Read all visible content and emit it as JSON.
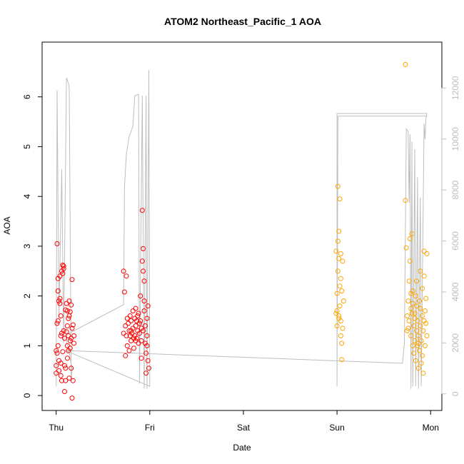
{
  "chart_data": {
    "type": "scatter",
    "title": "ATOM2 Northeast_Pacific_1 AOA",
    "xlabel": "Date",
    "ylabel": "AOA",
    "x_tick_labels": [
      "Thu",
      "Fri",
      "Sat",
      "Sun",
      "Mon"
    ],
    "x_tick_days": [
      0,
      1,
      2,
      3,
      4
    ],
    "xlim_days": [
      -0.15,
      4.12
    ],
    "ylim": [
      -0.3,
      7.1
    ],
    "y_ticks": [
      0,
      1,
      2,
      3,
      4,
      5,
      6
    ],
    "y2_ticks": [
      0,
      2000,
      4000,
      6000,
      8000,
      10000,
      12000
    ],
    "y2lim": [
      -650,
      13800
    ],
    "grid": false,
    "legend": "none",
    "colors": {
      "leg1": "#ff0000",
      "leg2": "#ff0000",
      "leg3": "#ffa500",
      "leg4": "#ffa500",
      "altitude": "#bebebe",
      "axis_right": "#bdbdbd"
    },
    "series": [
      {
        "color": "#ff0000",
        "points": [
          [
            0.0,
            0.45
          ],
          [
            0.0,
            0.6
          ],
          [
            0.0,
            0.9
          ],
          [
            0.01,
            1.45
          ],
          [
            0.01,
            3.05
          ],
          [
            0.02,
            2.35
          ],
          [
            0.02,
            2.1
          ],
          [
            0.02,
            1.5
          ],
          [
            0.03,
            0.7
          ],
          [
            0.03,
            0.5
          ],
          [
            0.04,
            1.95
          ],
          [
            0.04,
            1.85
          ],
          [
            0.05,
            1.6
          ],
          [
            0.05,
            1.2
          ],
          [
            0.05,
            0.65
          ],
          [
            0.06,
            0.3
          ],
          [
            0.06,
            2.5
          ],
          [
            0.07,
            2.62
          ],
          [
            0.07,
            2.45
          ],
          [
            0.07,
            0.88
          ],
          [
            0.08,
            2.6
          ],
          [
            0.08,
            1.3
          ],
          [
            0.09,
            1.15
          ],
          [
            0.09,
            0.08
          ],
          [
            0.1,
            1.72
          ],
          [
            0.1,
            0.55
          ],
          [
            0.11,
            1.28
          ],
          [
            0.11,
            1.85
          ],
          [
            0.12,
            1.4
          ],
          [
            0.12,
            1.0
          ],
          [
            0.12,
            0.75
          ],
          [
            0.13,
            1.55
          ],
          [
            0.13,
            1.2
          ],
          [
            0.14,
            0.35
          ],
          [
            0.14,
            1.9
          ],
          [
            0.15,
            1.1
          ],
          [
            0.15,
            1.68
          ],
          [
            0.15,
            0.95
          ],
          [
            0.16,
            1.82
          ],
          [
            0.16,
            0.55
          ],
          [
            0.17,
            1.35
          ],
          [
            0.17,
            2.33
          ],
          [
            0.17,
            -0.05
          ],
          [
            0.18,
            1.42
          ],
          [
            0.18,
            0.3
          ],
          [
            0.19,
            1.2
          ],
          [
            0.19,
            1.05
          ],
          [
            0.02,
            1.0
          ],
          [
            0.05,
            0.4
          ],
          [
            0.1,
            0.3
          ],
          [
            0.14,
            1.6
          ],
          [
            0.04,
            2.4
          ],
          [
            0.08,
            2.55
          ],
          [
            0.12,
            1.7
          ],
          [
            0.01,
            0.85
          ],
          [
            0.06,
            1.25
          ],
          [
            0.09,
            0.6
          ],
          [
            0.13,
            0.9
          ],
          [
            0.03,
            1.9
          ],
          [
            0.16,
            1.15
          ]
        ]
      },
      {
        "color": "#ff0000",
        "points": [
          [
            0.72,
            2.5
          ],
          [
            0.72,
            1.25
          ],
          [
            0.73,
            2.08
          ],
          [
            0.74,
            0.8
          ],
          [
            0.74,
            1.4
          ],
          [
            0.75,
            1.2
          ],
          [
            0.75,
            2.4
          ],
          [
            0.76,
            1.0
          ],
          [
            0.77,
            1.45
          ],
          [
            0.78,
            1.3
          ],
          [
            0.78,
            0.9
          ],
          [
            0.79,
            1.6
          ],
          [
            0.8,
            1.1
          ],
          [
            0.8,
            1.5
          ],
          [
            0.81,
            1.25
          ],
          [
            0.82,
            1.7
          ],
          [
            0.82,
            1.35
          ],
          [
            0.83,
            0.95
          ],
          [
            0.84,
            1.55
          ],
          [
            0.84,
            1.2
          ],
          [
            0.85,
            1.75
          ],
          [
            0.85,
            1.4
          ],
          [
            0.86,
            1.15
          ],
          [
            0.87,
            1.6
          ],
          [
            0.87,
            1.3
          ],
          [
            0.88,
            1.05
          ],
          [
            0.89,
            1.45
          ],
          [
            0.89,
            1.25
          ],
          [
            0.9,
            2.0
          ],
          [
            0.9,
            1.5
          ],
          [
            0.91,
            1.35
          ],
          [
            0.91,
            0.75
          ],
          [
            0.92,
            2.7
          ],
          [
            0.92,
            3.72
          ],
          [
            0.93,
            2.95
          ],
          [
            0.93,
            2.5
          ],
          [
            0.94,
            1.7
          ],
          [
            0.94,
            1.9
          ],
          [
            0.95,
            1.4
          ],
          [
            0.95,
            1.05
          ],
          [
            0.96,
            0.45
          ],
          [
            0.96,
            0.85
          ],
          [
            0.97,
            1.55
          ],
          [
            0.97,
            1.2
          ],
          [
            0.98,
            0.7
          ],
          [
            0.98,
            1.8
          ],
          [
            0.99,
            0.55
          ],
          [
            0.94,
            2.3
          ],
          [
            0.91,
            1.1
          ],
          [
            0.86,
            1.5
          ],
          [
            0.8,
            1.3
          ],
          [
            0.76,
            1.55
          ],
          [
            0.83,
            1.15
          ],
          [
            0.88,
            1.65
          ],
          [
            0.93,
            1.3
          ],
          [
            0.97,
            1.0
          ],
          [
            0.79,
            1.2
          ],
          [
            0.85,
            1.1
          ]
        ]
      },
      {
        "color": "#ffa500",
        "points": [
          [
            2.99,
            1.65
          ],
          [
            2.99,
            2.9
          ],
          [
            3.0,
            1.4
          ],
          [
            3.0,
            1.7
          ],
          [
            3.01,
            2.5
          ],
          [
            3.01,
            3.1
          ],
          [
            3.01,
            4.2
          ],
          [
            3.02,
            1.6
          ],
          [
            3.02,
            3.3
          ],
          [
            3.02,
            2.75
          ],
          [
            3.03,
            3.95
          ],
          [
            3.03,
            2.2
          ],
          [
            3.03,
            1.8
          ],
          [
            3.04,
            1.5
          ],
          [
            3.04,
            2.35
          ],
          [
            3.04,
            1.2
          ],
          [
            3.05,
            1.05
          ],
          [
            3.05,
            0.72
          ],
          [
            3.05,
            2.1
          ],
          [
            3.06,
            2.7
          ],
          [
            3.06,
            1.35
          ],
          [
            3.07,
            1.9
          ],
          [
            3.02,
            1.55
          ],
          [
            3.0,
            2.05
          ],
          [
            3.04,
            2.85
          ]
        ]
      },
      {
        "color": "#ffa500",
        "points": [
          [
            3.73,
            6.65
          ],
          [
            3.73,
            3.92
          ],
          [
            3.74,
            2.97
          ],
          [
            3.75,
            1.6
          ],
          [
            3.75,
            1.3
          ],
          [
            3.76,
            1.9
          ],
          [
            3.77,
            2.3
          ],
          [
            3.77,
            1.5
          ],
          [
            3.78,
            3.15
          ],
          [
            3.78,
            2.7
          ],
          [
            3.79,
            1.75
          ],
          [
            3.79,
            1.2
          ],
          [
            3.8,
            3.25
          ],
          [
            3.8,
            1.65
          ],
          [
            3.81,
            1.0
          ],
          [
            3.81,
            2.1
          ],
          [
            3.82,
            1.4
          ],
          [
            3.82,
            0.85
          ],
          [
            3.83,
            1.55
          ],
          [
            3.83,
            1.1
          ],
          [
            3.84,
            2.0
          ],
          [
            3.84,
            0.7
          ],
          [
            3.85,
            1.3
          ],
          [
            3.85,
            1.8
          ],
          [
            3.86,
            1.0
          ],
          [
            3.86,
            1.5
          ],
          [
            3.87,
            0.55
          ],
          [
            3.87,
            1.2
          ],
          [
            3.88,
            1.9
          ],
          [
            3.88,
            0.9
          ],
          [
            3.89,
            1.4
          ],
          [
            3.89,
            2.5
          ],
          [
            3.9,
            1.1
          ],
          [
            3.9,
            0.65
          ],
          [
            3.91,
            1.6
          ],
          [
            3.91,
            2.15
          ],
          [
            3.92,
            1.3
          ],
          [
            3.92,
            0.45
          ],
          [
            3.93,
            2.9
          ],
          [
            3.93,
            2.4
          ],
          [
            3.94,
            1.7
          ],
          [
            3.94,
            1.0
          ],
          [
            3.95,
            1.95
          ],
          [
            3.95,
            1.45
          ],
          [
            3.96,
            2.85
          ],
          [
            3.96,
            1.2
          ],
          [
            3.76,
            1.35
          ],
          [
            3.79,
            2.05
          ],
          [
            3.83,
            1.65
          ],
          [
            3.87,
            1.05
          ],
          [
            3.91,
            0.8
          ],
          [
            3.85,
            2.3
          ],
          [
            3.81,
            1.85
          ],
          [
            3.89,
            1.75
          ],
          [
            3.93,
            1.5
          ]
        ]
      }
    ],
    "altitude_line": {
      "color": "#bebebe",
      "points": [
        [
          0.0,
          300
        ],
        [
          0.01,
          11900
        ],
        [
          0.03,
          3000
        ],
        [
          0.06,
          8800
        ],
        [
          0.08,
          2000
        ],
        [
          0.11,
          12400
        ],
        [
          0.13,
          12200
        ],
        [
          0.14,
          12000
        ],
        [
          0.16,
          500
        ],
        [
          0.17,
          1000
        ],
        [
          0.1,
          2300
        ],
        [
          0.72,
          3500
        ],
        [
          0.73,
          8100
        ],
        [
          0.75,
          9400
        ],
        [
          0.78,
          10100
        ],
        [
          0.82,
          10500
        ],
        [
          0.83,
          11100
        ],
        [
          0.84,
          11700
        ],
        [
          0.88,
          11750
        ],
        [
          0.89,
          400
        ],
        [
          0.92,
          11700
        ],
        [
          0.94,
          200
        ],
        [
          0.96,
          11700
        ],
        [
          0.97,
          200
        ],
        [
          0.99,
          12700
        ],
        [
          1.0,
          300
        ],
        [
          0.1,
          1700
        ],
        [
          3.7,
          1200
        ],
        [
          3.72,
          2000
        ],
        [
          3.74,
          10400
        ],
        [
          3.76,
          10300
        ],
        [
          3.77,
          7500
        ],
        [
          3.78,
          10200
        ],
        [
          3.79,
          200
        ],
        [
          3.8,
          9900
        ],
        [
          3.81,
          300
        ],
        [
          3.83,
          9600
        ],
        [
          3.84,
          300
        ],
        [
          3.86,
          8500
        ],
        [
          3.87,
          200
        ],
        [
          3.89,
          7700
        ],
        [
          3.9,
          300
        ],
        [
          3.93,
          10600
        ],
        [
          3.94,
          10000
        ],
        [
          3.95,
          10800
        ],
        [
          3.96,
          11000
        ],
        [
          3.0,
          11000
        ],
        [
          3.0,
          300
        ],
        [
          3.01,
          10900
        ],
        [
          3.96,
          10900
        ]
      ]
    }
  }
}
